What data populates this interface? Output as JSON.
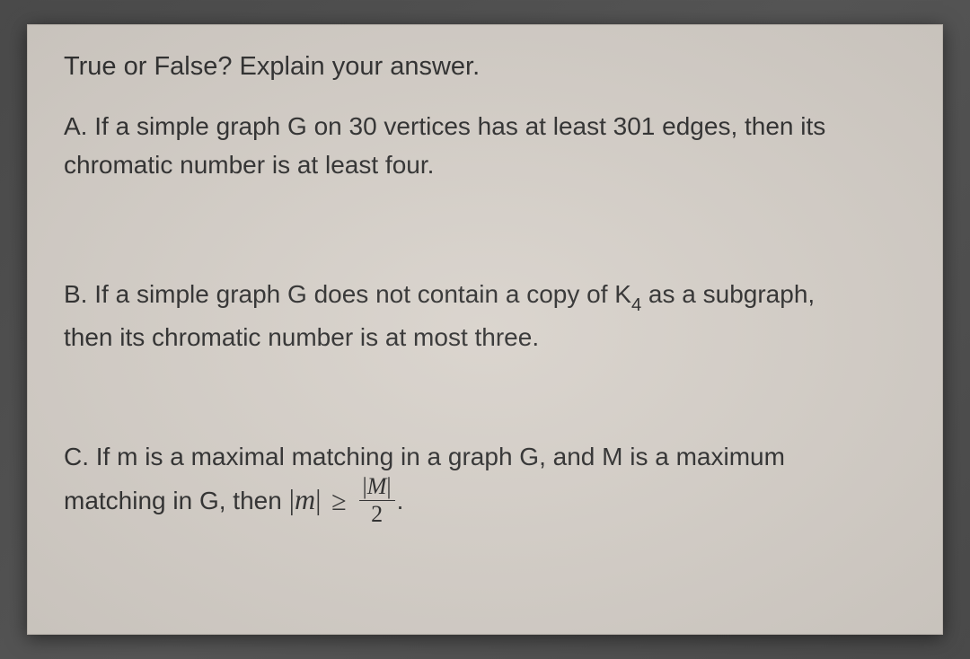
{
  "doc": {
    "background_color": "#d9d3cc",
    "text_color": "#2f2f2f",
    "font_family": "Arial, Helvetica, sans-serif",
    "heading": "True or False? Explain your answer.",
    "heading_fontsize": 29,
    "body_fontsize": 28,
    "questions": {
      "A": {
        "label": "A.",
        "line1": "If a simple graph G on 30 vertices has at least 301 edges, then its",
        "line2": "chromatic number is at least four."
      },
      "B": {
        "label": "B.",
        "line1_pre": "If a simple graph G does not contain a copy of K",
        "k_sub": "4",
        "line1_post": " as a subgraph,",
        "line2": "then its chromatic number is at most three."
      },
      "C": {
        "label": "C.",
        "line1": "If m is a maximal matching in a graph G, and M is a maximum",
        "line2_pre": "matching in G, then ",
        "abs_m": "m",
        "geq": "≥",
        "frac_num_abs": "M",
        "frac_den": "2",
        "period": "."
      }
    }
  }
}
